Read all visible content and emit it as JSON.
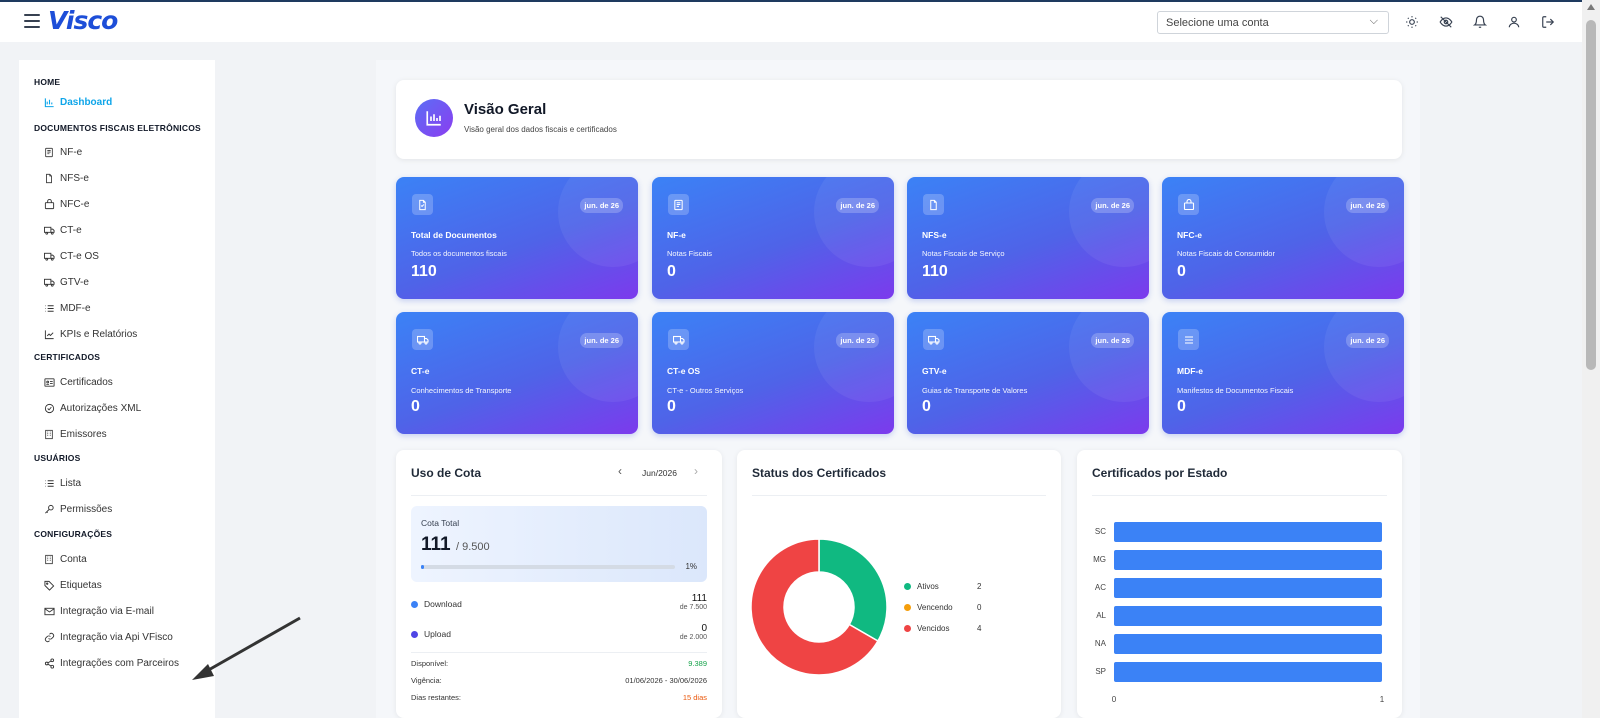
{
  "app": {
    "logo": "Visco"
  },
  "topbar": {
    "account_placeholder": "Selecione uma conta",
    "icons": [
      "sun-icon",
      "eye-off-icon",
      "bell-icon",
      "user-icon",
      "logout-icon"
    ]
  },
  "sidebar": {
    "sections": [
      {
        "title": "HOME",
        "items": [
          {
            "label": "Dashboard",
            "icon": "bar-chart-icon",
            "active": true
          }
        ]
      },
      {
        "title": "DOCUMENTOS FISCAIS ELETRÔNICOS",
        "items": [
          {
            "label": "NF-e",
            "icon": "receipt-icon"
          },
          {
            "label": "NFS-e",
            "icon": "file-icon"
          },
          {
            "label": "NFC-e",
            "icon": "bag-icon"
          },
          {
            "label": "CT-e",
            "icon": "truck-icon"
          },
          {
            "label": "CT-e OS",
            "icon": "truck-icon"
          },
          {
            "label": "GTV-e",
            "icon": "truck-icon"
          },
          {
            "label": "MDF-e",
            "icon": "list-icon"
          },
          {
            "label": "KPIs e Relatórios",
            "icon": "chart-line-icon"
          }
        ]
      },
      {
        "title": "CERTIFICADOS",
        "items": [
          {
            "label": "Certificados",
            "icon": "id-card-icon"
          },
          {
            "label": "Autorizações XML",
            "icon": "check-circle-icon"
          },
          {
            "label": "Emissores",
            "icon": "building-icon"
          }
        ]
      },
      {
        "title": "USUÁRIOS",
        "items": [
          {
            "label": "Lista",
            "icon": "list-icon"
          },
          {
            "label": "Permissões",
            "icon": "key-icon"
          }
        ]
      },
      {
        "title": "CONFIGURAÇÕES",
        "items": [
          {
            "label": "Conta",
            "icon": "building-icon"
          },
          {
            "label": "Etiquetas",
            "icon": "tag-icon"
          },
          {
            "label": "Integração via E-mail",
            "icon": "mail-icon"
          },
          {
            "label": "Integração via Api VFisco",
            "icon": "link-icon"
          },
          {
            "label": "Integrações com Parceiros",
            "icon": "share-icon"
          }
        ]
      }
    ]
  },
  "hero": {
    "title": "Visão Geral",
    "subtitle": "Visão geral dos dados fiscais e certificados"
  },
  "cards": [
    {
      "title": "Total de Documentos",
      "subtitle": "Todos os documentos fiscais",
      "value": "110",
      "badge": "jun. de 26",
      "icon": "document-icon"
    },
    {
      "title": "NF-e",
      "subtitle": "Notas Fiscais",
      "value": "0",
      "badge": "jun. de 26",
      "icon": "receipt-icon"
    },
    {
      "title": "NFS-e",
      "subtitle": "Notas Fiscais de Serviço",
      "value": "110",
      "badge": "jun. de 26",
      "icon": "file-icon"
    },
    {
      "title": "NFC-e",
      "subtitle": "Notas Fiscais do Consumidor",
      "value": "0",
      "badge": "jun. de 26",
      "icon": "bag-icon"
    },
    {
      "title": "CT-e",
      "subtitle": "Conhecimentos de Transporte",
      "value": "0",
      "badge": "jun. de 26",
      "icon": "truck-icon"
    },
    {
      "title": "CT-e OS",
      "subtitle": "CT-e - Outros Serviços",
      "value": "0",
      "badge": "jun. de 26",
      "icon": "truck-icon"
    },
    {
      "title": "GTV-e",
      "subtitle": "Guias de Transporte de Valores",
      "value": "0",
      "badge": "jun. de 26",
      "icon": "truck-icon"
    },
    {
      "title": "MDF-e",
      "subtitle": "Manifestos de Documentos Fiscais",
      "value": "0",
      "badge": "jun. de 26",
      "icon": "list-icon"
    }
  ],
  "quota": {
    "title": "Uso de Cota",
    "period": "Jun/2026",
    "total_label": "Cota Total",
    "used": "111",
    "limit": "/ 9.500",
    "percent_label": "1%",
    "percent_value": 0.0117,
    "download": {
      "label": "Download",
      "value": "111",
      "limit": "de 7.500",
      "color": "#3b82f6"
    },
    "upload": {
      "label": "Upload",
      "value": "0",
      "limit": "de 2.000",
      "color": "#4f46e5"
    },
    "available_label": "Disponível:",
    "available_value": "9.389",
    "validity_label": "Vigência:",
    "validity_value": "01/06/2026 - 30/06/2026",
    "remaining_label": "Dias restantes:",
    "remaining_value": "15 dias"
  },
  "certs_status": {
    "title": "Status dos Certificados",
    "legend": [
      {
        "label": "Ativos",
        "value": "2",
        "color": "#10b981"
      },
      {
        "label": "Vencendo",
        "value": "0",
        "color": "#f59e0b"
      },
      {
        "label": "Vencidos",
        "value": "4",
        "color": "#ef4444"
      }
    ]
  },
  "chart_data": [
    {
      "type": "pie",
      "title": "Status dos Certificados",
      "categories": [
        "Ativos",
        "Vencendo",
        "Vencidos"
      ],
      "values": [
        2,
        0,
        4
      ]
    },
    {
      "type": "bar",
      "title": "Certificados por Estado",
      "categories": [
        "SC",
        "MG",
        "AC",
        "AL",
        "NA",
        "SP"
      ],
      "values": [
        1,
        1,
        1,
        1,
        1,
        1
      ],
      "xlim": [
        0,
        1
      ],
      "xticks": [
        "0",
        "1"
      ]
    }
  ],
  "colors": {
    "accent": "#3b82f6",
    "active_nav": "#0ea5e9",
    "available": "#16a34a",
    "remaining": "#ea580c"
  }
}
